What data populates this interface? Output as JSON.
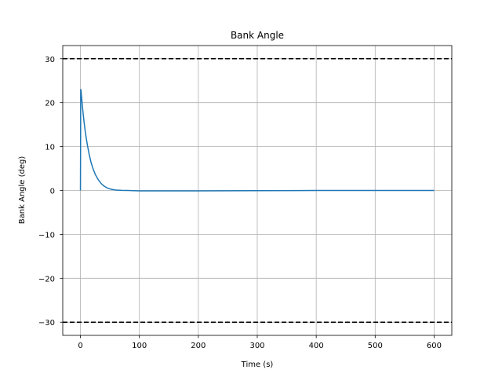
{
  "chart_data": {
    "type": "line",
    "title": "Bank Angle",
    "xlabel": "Time (s)",
    "ylabel": "Bank Angle (deg)",
    "xlim": [
      -30,
      630
    ],
    "ylim": [
      -33,
      33
    ],
    "xticks": [
      0,
      100,
      200,
      300,
      400,
      500,
      600
    ],
    "yticks": [
      -30,
      -20,
      -10,
      0,
      10,
      20,
      30
    ],
    "xtick_labels": [
      "0",
      "100",
      "200",
      "300",
      "400",
      "500",
      "600"
    ],
    "ytick_labels": [
      "−30",
      "−20",
      "−10",
      "0",
      "10",
      "20",
      "30"
    ],
    "grid": true,
    "series": [
      {
        "color": "#1f77b4",
        "x": [
          0,
          0.5,
          1,
          2,
          4,
          6,
          8,
          10,
          12,
          15,
          18,
          21,
          25,
          30,
          35,
          40,
          45,
          50,
          55,
          60,
          70,
          80,
          100,
          150,
          200,
          300,
          400,
          500,
          600
        ],
        "y": [
          0,
          23,
          22.8,
          21.2,
          18.3,
          15.8,
          13.6,
          11.8,
          10.2,
          8.1,
          6.4,
          5.1,
          3.7,
          2.5,
          1.6,
          1.0,
          0.6,
          0.35,
          0.2,
          0.1,
          0.03,
          0,
          -0.1,
          -0.1,
          -0.1,
          -0.05,
          0,
          0,
          0
        ]
      }
    ],
    "reference_lines": [
      {
        "y": 30,
        "color": "#000000",
        "style": "dashed"
      },
      {
        "y": -30,
        "color": "#000000",
        "style": "dashed"
      }
    ]
  }
}
